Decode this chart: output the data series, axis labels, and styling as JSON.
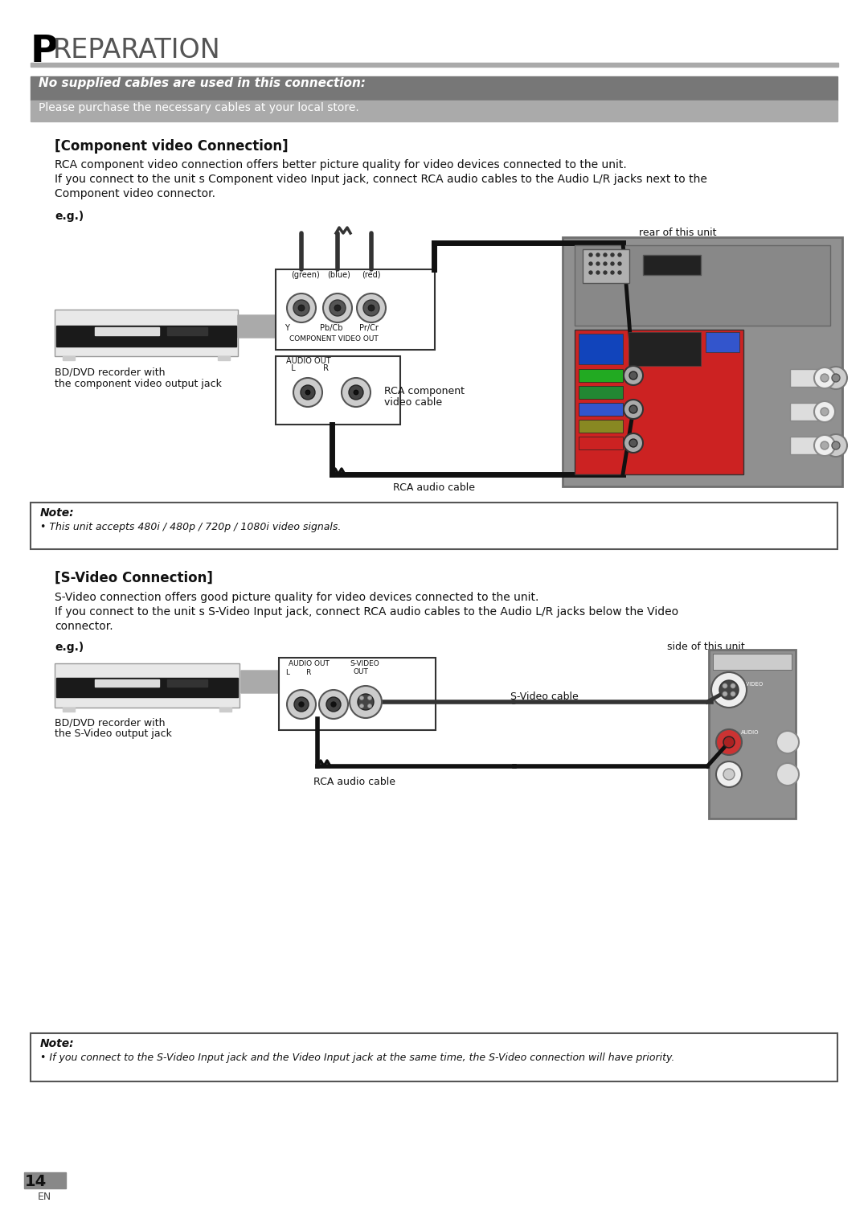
{
  "page_bg": "#ffffff",
  "page_num": "14",
  "page_lang": "EN",
  "title_letter": "P",
  "title_rest": "REPARATION",
  "banner1_bg": "#777777",
  "banner1_text": "No supplied cables are used in this connection:",
  "banner1_text_color": "#ffffff",
  "banner2_bg": "#aaaaaa",
  "banner2_text": "Please purchase the necessary cables at your local store.",
  "banner2_text_color": "#ffffff",
  "section1_title": "[Component video Connection]",
  "section1_body1": "RCA component video connection offers better picture quality for video devices connected to the unit.",
  "section1_body2": "If you connect to the unit s Component video Input jack, connect RCA audio cables to the Audio L/R jacks next to the",
  "section1_body3": "Component video connector.",
  "section1_eg": "e.g.)",
  "section1_rear_label": "rear of this unit",
  "section1_rca_label1": "RCA component",
  "section1_rca_label2": "video cable",
  "section1_audio_label": "RCA audio cable",
  "section1_bd_label1": "BD/DVD recorder with",
  "section1_bd_label2": "the component video output jack",
  "note1_title": "Note:",
  "note1_body": "• This unit accepts 480i / 480p / 720p / 1080i video signals.",
  "section2_title": "[S-Video Connection]",
  "section2_body1": "S-Video connection offers good picture quality for video devices connected to the unit.",
  "section2_body2": "If you connect to the unit s S-Video Input jack, connect RCA audio cables to the Audio L/R jacks below the Video",
  "section2_body3": "connector.",
  "section2_eg": "e.g.)",
  "section2_side_label": "side of this unit",
  "section2_svideo_label": "S-Video cable",
  "section2_audio_label": "RCA audio cable",
  "section2_bd_label1": "BD/DVD recorder with",
  "section2_bd_label2": "the S-Video output jack",
  "note2_title": "Note:",
  "note2_body": "• If you connect to the S-Video Input jack and the Video Input jack at the same time, the S-Video connection will have priority."
}
